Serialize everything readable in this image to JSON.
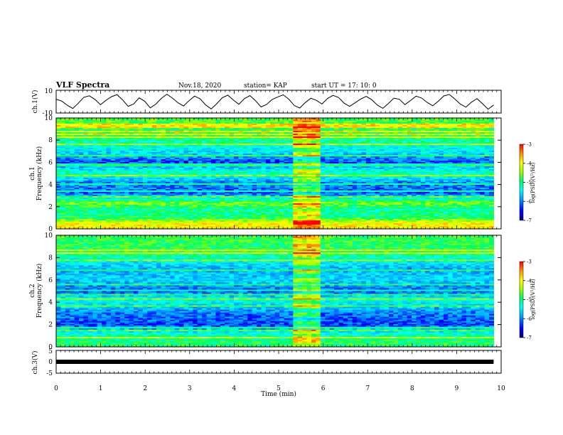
{
  "header": {
    "title": "VLF Spectra",
    "date": "Nov.18, 2020",
    "station": "station= KAP",
    "start": "start  UT  =  17: 10: 0"
  },
  "chart_data": [
    {
      "type": "line",
      "name": "ch1-waveform",
      "ylabel": "ch.1(V)",
      "ylim": [
        -10,
        10
      ],
      "yticks": [
        "10",
        "-10"
      ],
      "x_range_min": [
        0,
        9.83
      ],
      "description_only": false,
      "values_v": [
        2.1,
        0.5,
        -3.2,
        -6.0,
        -1.4,
        3.8,
        5.1,
        2.0,
        -2.7,
        1.2,
        4.4,
        6.2,
        1.5,
        -4.1,
        -2.0,
        3.3,
        0.4,
        -5.5,
        -2.2,
        2.9,
        6.5,
        3.1,
        -1.0,
        -3.8,
        0.8,
        4.9,
        2.5,
        -2.9,
        -6.4,
        -1.9,
        3.5,
        5.7,
        1.4,
        -2.3,
        2.6,
        5.3,
        0.9,
        -4.7,
        -2.5,
        1.9,
        4.1,
        6.0,
        2.2,
        -3.4,
        -5.6,
        -0.8,
        3.0,
        1.1,
        -2.1,
        2.8,
        5.5,
        3.6,
        -1.3,
        -4.2,
        -1.0,
        2.3,
        4.6,
        1.7,
        -3.0,
        -5.9,
        -1.6,
        3.1,
        2.0,
        -2.6,
        1.0,
        4.8,
        3.2,
        -0.7,
        -3.6,
        0.3,
        5.0,
        6.3,
        2.4,
        -2.2,
        -4.9,
        -0.5,
        2.7,
        -1.8,
        -6.6,
        -3.0
      ]
    },
    {
      "type": "heatmap",
      "name": "ch1-spectrogram",
      "ylabel": "ch.1\nFrequency (kHz)",
      "ylim": [
        0,
        10
      ],
      "yticks": [
        "0",
        "2",
        "4",
        "6",
        "8",
        "10"
      ],
      "colorbar": {
        "label": "log(PSD)(V²/Hz)",
        "range": [
          -7,
          -3
        ],
        "ticks": [
          "-3",
          "-4",
          "-5",
          "-6",
          "-7"
        ]
      },
      "strong_band_time_min": [
        5.3,
        5.9
      ],
      "approx_band_levels": [
        {
          "f_khz": 0.5,
          "level": -4.0
        },
        {
          "f_khz": 1.0,
          "level": -5.0
        },
        {
          "f_khz": 1.8,
          "level": -5.2
        },
        {
          "f_khz": 2.3,
          "level": -4.6
        },
        {
          "f_khz": 3.2,
          "level": -6.2
        },
        {
          "f_khz": 4.2,
          "level": -6.0
        },
        {
          "f_khz": 5.0,
          "level": -5.2
        },
        {
          "f_khz": 6.0,
          "level": -6.3
        },
        {
          "f_khz": 7.0,
          "level": -5.6
        },
        {
          "f_khz": 8.5,
          "level": -4.9
        },
        {
          "f_khz": 9.5,
          "level": -4.8
        }
      ]
    },
    {
      "type": "heatmap",
      "name": "ch2-spectrogram",
      "ylabel": "ch.2\nFrequency (kHz)",
      "ylim": [
        0,
        10
      ],
      "yticks": [
        "0",
        "2",
        "4",
        "6",
        "8",
        "10"
      ],
      "colorbar": {
        "label": "log(PSD)(V²/Hz)",
        "range": [
          -7,
          -3
        ],
        "ticks": [
          "-3",
          "-4",
          "-5",
          "-6",
          "-7"
        ]
      },
      "strong_band_time_min": [
        5.3,
        5.9
      ],
      "approx_band_levels": [
        {
          "f_khz": 0.5,
          "level": -5.0
        },
        {
          "f_khz": 1.2,
          "level": -5.4
        },
        {
          "f_khz": 2.0,
          "level": -6.3
        },
        {
          "f_khz": 3.0,
          "level": -6.1
        },
        {
          "f_khz": 4.2,
          "level": -5.4
        },
        {
          "f_khz": 5.0,
          "level": -6.2
        },
        {
          "f_khz": 6.0,
          "level": -5.7
        },
        {
          "f_khz": 7.0,
          "level": -5.9
        },
        {
          "f_khz": 8.5,
          "level": -5.0
        },
        {
          "f_khz": 9.5,
          "level": -4.9
        }
      ]
    },
    {
      "type": "line",
      "name": "ch3-trace",
      "ylabel": "ch.3(V)",
      "ylim": [
        -5,
        5
      ],
      "yticks": [
        "5",
        "0",
        "-5"
      ],
      "level_v": 0,
      "x_range_min": [
        0,
        9.83
      ]
    }
  ],
  "x_axis": {
    "label": "Time  (min)",
    "range": [
      0,
      10
    ],
    "ticks": [
      "0",
      "1",
      "2",
      "3",
      "4",
      "5",
      "6",
      "7",
      "8",
      "9",
      "10"
    ]
  },
  "colors": {
    "colormap": [
      "#000078",
      "#0000ff",
      "#00a0ff",
      "#00ffff",
      "#00ff60",
      "#a0ff00",
      "#ffff00",
      "#ff9000",
      "#ff0000"
    ],
    "trace": "#000000"
  }
}
